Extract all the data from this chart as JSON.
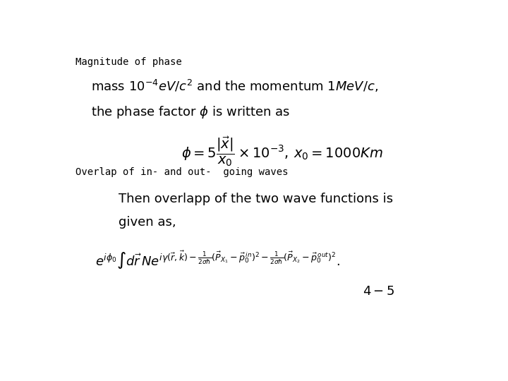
{
  "background_color": "#ffffff",
  "title1": "Magnitude of phase",
  "title2": "Overlap of in- and out-  going waves",
  "line1": "mass $10^{-4}eV/c^2$ and the momentum $1MeV/c,$",
  "line2": "the phase factor $\\phi$ is written as",
  "eq1": "$\\phi = 5\\dfrac{|\\vec{x}|}{x_0} \\times 10^{-3},\\, x_0 = 1000Km$",
  "line3": "Then overlapp of the two wave functions is",
  "line4": "given as,",
  "eq_label": "$4-5$",
  "fig_width": 7.2,
  "fig_height": 5.4,
  "dpi": 100
}
